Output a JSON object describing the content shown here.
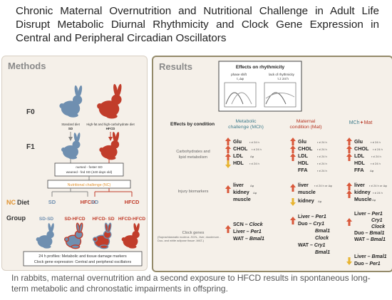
{
  "title": "Chronic Maternal Overnutrition and Nutritional Challenge in Adult Life Disrupt Metabolic Diurnal Rhythmicity and Clock Gene Expression in Central and Peripheral Circadian Oscillators",
  "footer": "In rabbits, maternal overnutrition and a second exposure to HFCD results in spontaneous long-term metabolic and chronostatic impairments in offspring.",
  "methods": {
    "heading": "Methods",
    "f0": "F0",
    "f1": "F1",
    "sd_label_1": "Standard diet",
    "sd_label_2": "SD",
    "hfcd_label_1": "High-fat and high-carbohydrate diet",
    "hfcd_label_2": "HFCD",
    "nursed": "nursed - foster SD",
    "weaned": "weaned - fed SD (440 days old)",
    "nc": "Nutritional challenge (NC)",
    "nc_diet_prefix": "NC",
    "nc_diet_suffix": "Diet",
    "group": "Group",
    "left_sd": "SD",
    "left_hfcd": "HFCD",
    "right_sd": "SD",
    "right_hfcd": "HFCD",
    "groups": [
      "SD-SD",
      "SD-HFCD",
      "HFCD- SD",
      "HFCD-HFCD"
    ],
    "profile_1": "24 h profiles: Metabolic and tissue damage markers",
    "profile_2": "Clock gene expression: Central and peripheral oscillators"
  },
  "results": {
    "heading": "Results",
    "inset_title": "Effects on rhythmicity",
    "phase_shift": "phase shift",
    "phase_sub": "τ, Δφ",
    "lack": "lack of rhythmicity",
    "lack_sub": "τ ≠ 24 h",
    "by_condition": "Effects by condition",
    "col_mch_1": "Metabolic",
    "col_mch_2": "challenge (MCh)",
    "col_mat_1": "Maternal",
    "col_mat_2": "condition (Mat)",
    "col_both_mch": "MCh",
    "col_both_plus": "+",
    "col_both_mat": "Mat",
    "row_carb_1": "Carbohydrates and",
    "row_carb_2": "lipid metabolism",
    "row_injury": "Injury biomarkers",
    "row_clock": "Clock genes",
    "row_clock_note": "(Suprachiasmatic nucleus -SCN-, liver, duodenum -Duo- and white adipose tissue -WAT-)",
    "carb_mch": [
      {
        "name": "Glu",
        "note": "τ ≠ 24 h"
      },
      {
        "name": "CHOL",
        "note": "τ ≠ 24 h"
      },
      {
        "name": "LDL",
        "note": "Δφ"
      },
      {
        "name": "HDL",
        "note": "τ ≠ 24 h"
      }
    ],
    "carb_mat": [
      {
        "name": "Glu",
        "note": "τ ≠ 24 h"
      },
      {
        "name": "CHOL",
        "note": "τ ≠ 24 h"
      },
      {
        "name": "LDL",
        "note": "τ ≠ 24 h"
      },
      {
        "name": "HDL",
        "note": "τ ≠ 24 h"
      },
      {
        "name": "FFA",
        "note": "τ ≠ 24 h"
      }
    ],
    "carb_both": [
      {
        "name": "Glu",
        "note": "τ ≠ 24 h"
      },
      {
        "name": "CHOL",
        "note": "τ ≠ 24 h"
      },
      {
        "name": "LDL",
        "note": "τ ≠ 24 h"
      },
      {
        "name": "HDL",
        "note": "τ ≠ 24 h"
      },
      {
        "name": "FFA",
        "note": "Δφ"
      }
    ],
    "inj_mch": [
      {
        "name": "liver",
        "note": "Δφ"
      },
      {
        "name": "kidney",
        "note": "Δφ"
      },
      {
        "name": "muscle",
        "note": ""
      }
    ],
    "inj_mat": [
      {
        "name": "liver",
        "note": "τ ≠ 24 h or Δφ"
      },
      {
        "name": "muscle",
        "note": ""
      },
      {
        "name": "kidney",
        "note": "Δφ"
      }
    ],
    "inj_both": [
      {
        "name": "liver",
        "note": "τ ≠ 24 h or Δφ"
      },
      {
        "name": "kidney",
        "note": "τ ≠ 24 h"
      },
      {
        "name": "Muscle",
        "note": "Δφ"
      }
    ],
    "clock_mch": [
      {
        "tissue": "SCN",
        "gene": "Clock"
      },
      {
        "tissue": "Liver",
        "gene": "Per1"
      },
      {
        "tissue": "WAT",
        "gene": "Bmal1"
      }
    ],
    "clock_mat": [
      {
        "tissue": "Liver",
        "gene": "Per1"
      },
      {
        "tissue": "Duo",
        "gene": "Cry1"
      },
      {
        "tissue": "",
        "gene": "Bmal1"
      },
      {
        "tissue": "",
        "gene": "Clock"
      },
      {
        "tissue": "WAT",
        "gene": "Cry1"
      },
      {
        "tissue": "",
        "gene": "Bmal1"
      }
    ],
    "clock_both": [
      {
        "tissue": "Liver",
        "gene": "Per1"
      },
      {
        "tissue": "",
        "gene": "Cry1"
      },
      {
        "tissue": "",
        "gene": "Clock"
      },
      {
        "tissue": "Duo",
        "gene": "Bmal1"
      },
      {
        "tissue": "WAT",
        "gene": "Bmal1"
      },
      {
        "tissue": "Liver",
        "gene": "Bmal1"
      },
      {
        "tissue": "Duo",
        "gene": "Per1"
      }
    ]
  },
  "colors": {
    "up": "#d9583a",
    "down": "#e8b430",
    "mch": "#3f7c8c",
    "mat": "#b5321f",
    "sd_rabbit": "#6f8fb0",
    "hfcd_rabbit": "#c13d2b",
    "nc_orange": "#e0922f"
  }
}
